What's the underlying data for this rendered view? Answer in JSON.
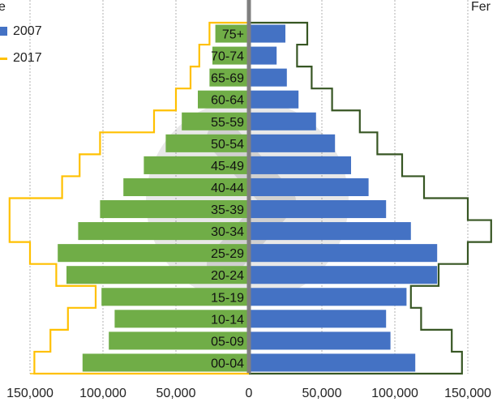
{
  "chart_data": {
    "type": "bar",
    "subtype": "population-pyramid",
    "left_group_label": "Male",
    "right_group_label": "Female",
    "categories": [
      "00-04",
      "05-09",
      "10-14",
      "15-19",
      "20-24",
      "25-29",
      "30-34",
      "35-39",
      "40-44",
      "45-49",
      "50-54",
      "55-59",
      "60-64",
      "65-69",
      "70-74",
      "75+"
    ],
    "series": [
      {
        "name": "2007",
        "side_values": {
          "left": [
            114000,
            96000,
            92000,
            101000,
            125000,
            131000,
            117000,
            102000,
            86000,
            72000,
            57000,
            46000,
            35000,
            27000,
            25000,
            23000
          ],
          "right": [
            114000,
            97000,
            94000,
            108000,
            129000,
            129000,
            111000,
            94000,
            82000,
            70000,
            59000,
            46000,
            34000,
            26000,
            19000,
            25000
          ]
        }
      },
      {
        "name": "2017",
        "side_values": {
          "left": [
            147000,
            136000,
            124000,
            105000,
            132000,
            150000,
            164000,
            164000,
            128000,
            116000,
            102000,
            65000,
            50000,
            40000,
            34000,
            27000
          ],
          "right": [
            146000,
            139000,
            118000,
            111000,
            130000,
            150000,
            166000,
            150000,
            120000,
            105000,
            88000,
            76000,
            57000,
            43000,
            33000,
            40000
          ]
        }
      }
    ],
    "x_ticks": [
      "150,000",
      "100,000",
      "50,000",
      "0",
      "50,000",
      "100,000",
      "150,000"
    ],
    "xlim": [
      -150000,
      150000
    ],
    "grid": "vertical-dotted",
    "legend_position": "top-left",
    "colors": {
      "male_2007": "#70ad47",
      "female_2007": "#4472c4",
      "male_2017_outline": "#ffc000",
      "female_2017_outline": "#375623",
      "center_axis": "#7f7f7f"
    }
  },
  "legend": {
    "label_2007": "2007",
    "label_2017": "2017"
  },
  "header": {
    "male_fragment": "e",
    "female_fragment": "Fer"
  }
}
